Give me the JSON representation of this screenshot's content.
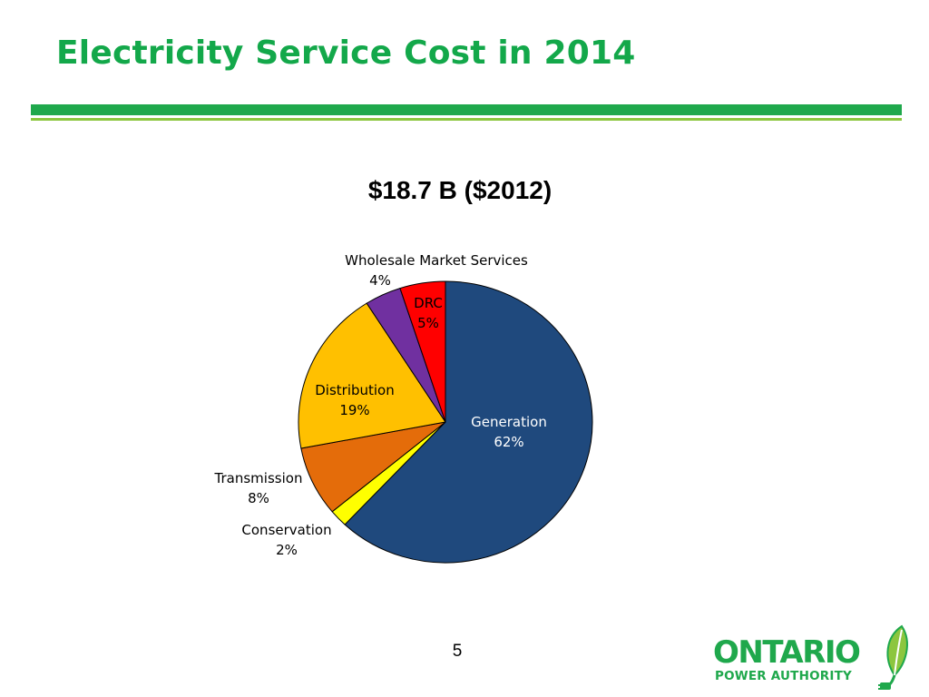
{
  "slide": {
    "title": "Electricity Service Cost in 2014",
    "page_number": "5"
  },
  "logo": {
    "word": "ONTARIO",
    "sub": "POWER AUTHORITY",
    "icon": "leaf-plug-icon",
    "color": "#1fa84c"
  },
  "chart_data": {
    "type": "pie",
    "title": "$18.7 B ($2012)",
    "start_angle_deg": 0,
    "direction": "clockwise",
    "slices": [
      {
        "name": "Generation",
        "value": 62,
        "label": "62%",
        "color": "#1f497d"
      },
      {
        "name": "Conservation",
        "value": 2,
        "label": "2%",
        "color": "#ffff00"
      },
      {
        "name": "Transmission",
        "value": 8,
        "label": "8%",
        "color": "#e46c0a"
      },
      {
        "name": "Distribution",
        "value": 19,
        "label": "19%",
        "color": "#ffc000"
      },
      {
        "name": "Wholesale Market Services",
        "value": 4,
        "label": "4%",
        "color": "#7030a0"
      },
      {
        "name": "DRC",
        "value": 5,
        "label": "5%",
        "color": "#ff0000"
      }
    ],
    "legend": "none"
  }
}
